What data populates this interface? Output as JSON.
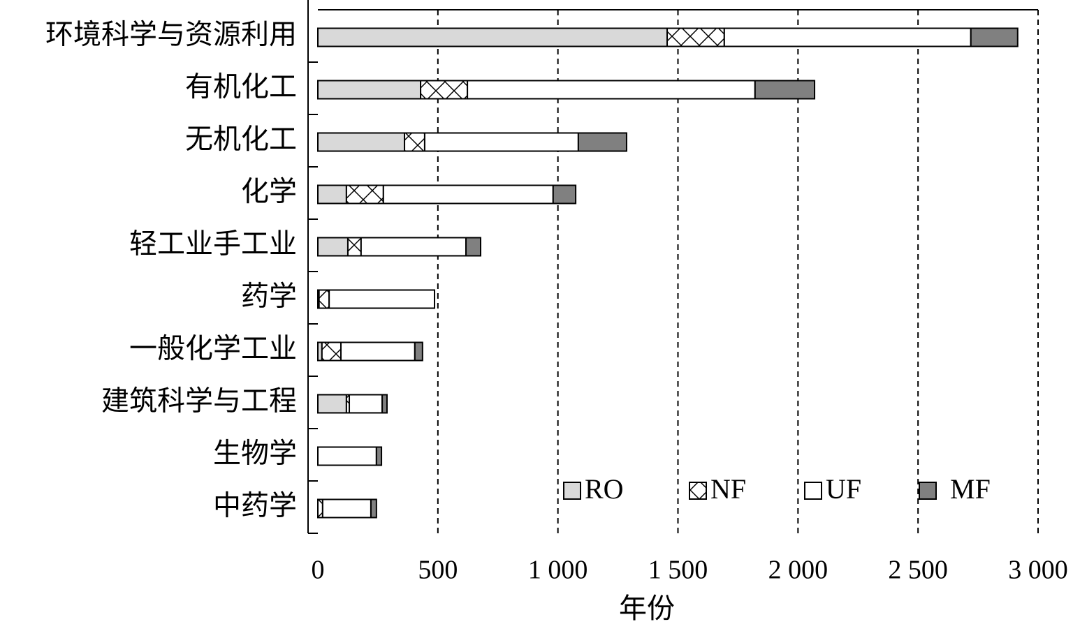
{
  "chart_data": {
    "type": "bar",
    "orientation": "horizontal",
    "stacked": true,
    "categories": [
      "环境科学与资源利用",
      "有机化工",
      "无机化工",
      "化学",
      "轻工业手工业",
      "药学",
      "一般化学工业",
      "建筑科学与工程",
      "生物学",
      "中药学"
    ],
    "series": [
      {
        "name": "RO",
        "color": "#d9d9d9",
        "values": [
          1455,
          428,
          361,
          119,
          125,
          5,
          17,
          119,
          0,
          0
        ]
      },
      {
        "name": "NF",
        "color": "#ffffff",
        "pattern": "cross",
        "values": [
          238,
          195,
          84,
          154,
          55,
          42,
          79,
          12,
          0,
          20
        ]
      },
      {
        "name": "UF",
        "color": "#ffffff",
        "values": [
          1027,
          1198,
          640,
          707,
          437,
          439,
          308,
          137,
          244,
          201
        ]
      },
      {
        "name": "MF",
        "color": "#808080",
        "values": [
          195,
          248,
          201,
          94,
          61,
          0,
          32,
          20,
          21,
          23
        ]
      }
    ],
    "xlabel": "年份",
    "xlim": [
      0,
      3000
    ],
    "xticks": [
      0,
      500,
      {
        "value": 1000,
        "label": "1 000"
      },
      {
        "value": 1500,
        "label": "1 500"
      },
      {
        "value": 2000,
        "label": "2 000"
      },
      {
        "value": 2500,
        "label": "2 500"
      },
      {
        "value": 3000,
        "label": "3 000"
      }
    ],
    "grid": true,
    "legend": "bottom-right"
  }
}
